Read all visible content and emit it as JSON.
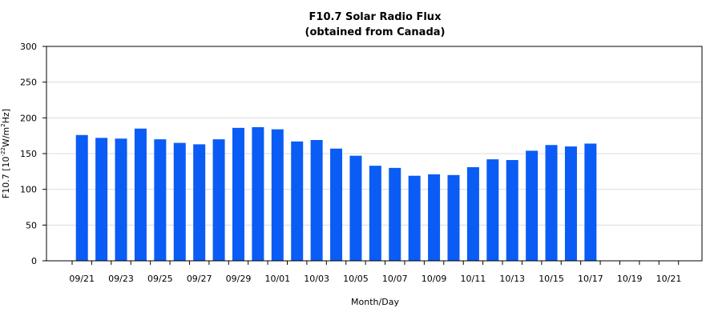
{
  "chart_data": {
    "type": "bar",
    "title": "F10.7 Solar Radio Flux",
    "subtitle": "(obtained from Canada)",
    "xlabel": "Month/Day",
    "ylabel_parts": {
      "pre": "F10.7 [10",
      "exp1": "-22",
      "mid": "W/m",
      "exp2": "2",
      "post": "Hz]"
    },
    "ylim": [
      0,
      300
    ],
    "yticks": [
      0,
      50,
      100,
      150,
      200,
      250,
      300
    ],
    "grid": true,
    "color": "#0a5cf5",
    "categories": [
      "09/21",
      "09/22",
      "09/23",
      "09/24",
      "09/25",
      "09/26",
      "09/27",
      "09/28",
      "09/29",
      "09/30",
      "10/01",
      "10/02",
      "10/03",
      "10/04",
      "10/05",
      "10/06",
      "10/07",
      "10/08",
      "10/09",
      "10/10",
      "10/11",
      "10/12",
      "10/13",
      "10/14",
      "10/15",
      "10/16",
      "10/17",
      "10/18",
      "10/19",
      "10/20",
      "10/21",
      "10/22"
    ],
    "xtick_labels": [
      "09/21",
      "09/23",
      "09/25",
      "09/27",
      "09/29",
      "10/01",
      "10/03",
      "10/05",
      "10/07",
      "10/09",
      "10/11",
      "10/13",
      "10/15",
      "10/17",
      "10/19",
      "10/21"
    ],
    "values": [
      176,
      172,
      171,
      185,
      170,
      165,
      163,
      170,
      186,
      187,
      184,
      167,
      169,
      157,
      147,
      133,
      130,
      119,
      121,
      120,
      131,
      142,
      141,
      154,
      162,
      160,
      164,
      null,
      null,
      null,
      null,
      null
    ]
  }
}
